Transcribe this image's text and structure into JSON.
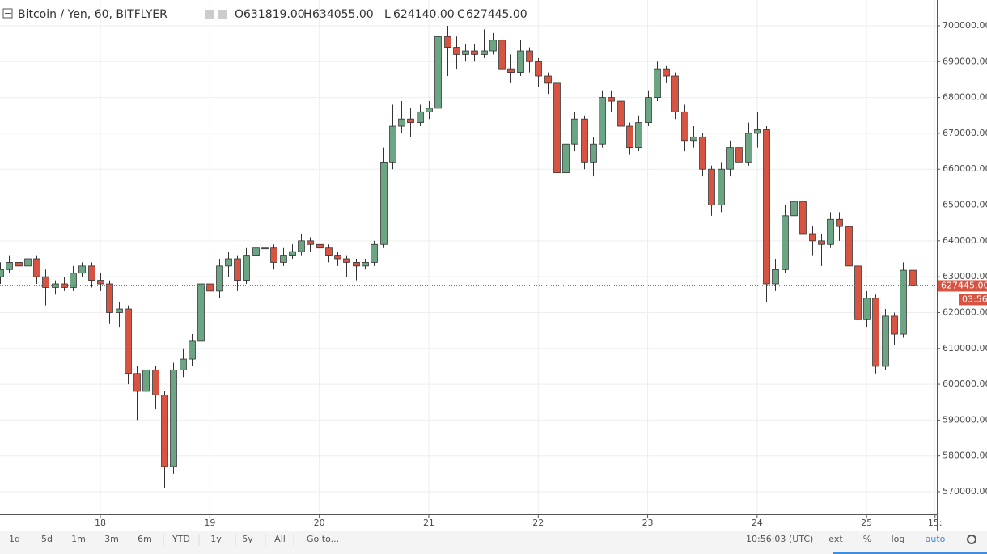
{
  "chart_data": {
    "type": "candlestick",
    "title": "Bitcoin / Yen, 60, BITFLYER",
    "x": [
      0,
      2,
      4,
      6,
      8,
      10,
      12,
      14,
      16,
      18,
      20,
      22,
      24,
      26,
      28,
      30,
      32,
      34,
      36,
      38,
      40,
      42,
      44,
      46,
      48,
      50,
      52,
      54,
      56,
      58,
      60,
      62,
      64,
      66,
      68,
      70,
      72,
      74,
      76,
      78,
      80,
      82,
      84,
      86,
      88,
      90,
      92,
      94,
      96,
      98,
      100,
      102,
      104,
      106,
      108,
      110,
      112,
      114,
      116,
      118,
      120,
      122,
      124,
      126,
      128,
      130,
      132,
      134,
      136,
      138,
      140,
      142,
      144,
      146,
      148,
      150,
      152,
      154,
      156,
      158,
      160,
      162,
      164,
      166,
      168,
      170,
      172,
      174,
      176,
      178,
      180,
      182,
      184,
      186,
      188,
      190,
      192,
      194,
      196,
      198,
      200
    ],
    "ohlc": [
      [
        630000,
        634000,
        628000,
        632000
      ],
      [
        632000,
        636000,
        631000,
        634000
      ],
      [
        634000,
        635000,
        631000,
        633000
      ],
      [
        633000,
        636000,
        632000,
        635000
      ],
      [
        635000,
        636000,
        628000,
        630000
      ],
      [
        630000,
        632000,
        622000,
        627000
      ],
      [
        627000,
        629000,
        625000,
        628000
      ],
      [
        628000,
        630000,
        626000,
        627000
      ],
      [
        627000,
        633000,
        626000,
        631000
      ],
      [
        631000,
        634000,
        630000,
        633000
      ],
      [
        633000,
        634000,
        627000,
        629000
      ],
      [
        629000,
        631000,
        626000,
        628000
      ],
      [
        628000,
        629000,
        617000,
        620000
      ],
      [
        620000,
        623000,
        616000,
        621000
      ],
      [
        621000,
        622000,
        600000,
        603000
      ],
      [
        603000,
        605000,
        590000,
        598000
      ],
      [
        598000,
        607000,
        595000,
        604000
      ],
      [
        604000,
        605000,
        593000,
        597000
      ],
      [
        597000,
        598000,
        571000,
        577000
      ],
      [
        577000,
        606000,
        575000,
        604000
      ],
      [
        604000,
        610000,
        602000,
        607000
      ],
      [
        607000,
        614000,
        605000,
        612000
      ],
      [
        612000,
        631000,
        610000,
        628000
      ],
      [
        628000,
        630000,
        622000,
        626000
      ],
      [
        626000,
        635000,
        624000,
        633000
      ],
      [
        633000,
        637000,
        630000,
        635000
      ],
      [
        635000,
        636000,
        626000,
        629000
      ],
      [
        629000,
        638000,
        628000,
        636000
      ],
      [
        636000,
        640000,
        635000,
        638000
      ],
      [
        638000,
        640000,
        634000,
        638000
      ],
      [
        638000,
        639000,
        632000,
        634000
      ],
      [
        634000,
        638000,
        633000,
        636000
      ],
      [
        636000,
        639000,
        635000,
        637000
      ],
      [
        637000,
        642000,
        636000,
        640000
      ],
      [
        640000,
        641000,
        637000,
        639000
      ],
      [
        639000,
        640000,
        636000,
        638000
      ],
      [
        638000,
        639000,
        634000,
        636000
      ],
      [
        636000,
        637000,
        633000,
        635000
      ],
      [
        635000,
        636000,
        630000,
        634000
      ],
      [
        634000,
        635000,
        629000,
        633000
      ],
      [
        633000,
        635000,
        632000,
        634000
      ],
      [
        634000,
        640000,
        633000,
        639000
      ],
      [
        639000,
        666000,
        638000,
        662000
      ],
      [
        662000,
        678000,
        660000,
        672000
      ],
      [
        672000,
        679000,
        670000,
        674000
      ],
      [
        674000,
        677000,
        669000,
        673000
      ],
      [
        673000,
        678000,
        672000,
        676000
      ],
      [
        676000,
        679000,
        674000,
        677000
      ],
      [
        677000,
        700000,
        676000,
        697000
      ],
      [
        697000,
        700000,
        686000,
        694000
      ],
      [
        694000,
        697000,
        688000,
        692000
      ],
      [
        692000,
        695000,
        690000,
        693000
      ],
      [
        693000,
        695000,
        690000,
        692000
      ],
      [
        692000,
        699000,
        691000,
        693000
      ],
      [
        693000,
        698000,
        692000,
        696000
      ],
      [
        696000,
        697000,
        680000,
        688000
      ],
      [
        688000,
        692000,
        684000,
        687000
      ],
      [
        687000,
        696000,
        686000,
        693000
      ],
      [
        693000,
        694000,
        687000,
        690000
      ],
      [
        690000,
        691000,
        683000,
        686000
      ],
      [
        686000,
        687000,
        681000,
        684000
      ],
      [
        684000,
        685000,
        657000,
        659000
      ],
      [
        659000,
        668000,
        657000,
        667000
      ],
      [
        667000,
        676000,
        665000,
        674000
      ],
      [
        674000,
        675000,
        660000,
        662000
      ],
      [
        662000,
        669000,
        658000,
        667000
      ],
      [
        667000,
        682000,
        666000,
        680000
      ],
      [
        680000,
        682000,
        676000,
        679000
      ],
      [
        679000,
        680000,
        670000,
        672000
      ],
      [
        672000,
        673000,
        664000,
        666000
      ],
      [
        666000,
        675000,
        665000,
        673000
      ],
      [
        673000,
        682000,
        672000,
        680000
      ],
      [
        680000,
        690000,
        679000,
        688000
      ],
      [
        688000,
        689000,
        684000,
        686000
      ],
      [
        686000,
        687000,
        674000,
        676000
      ],
      [
        676000,
        678000,
        665000,
        668000
      ],
      [
        668000,
        672000,
        666000,
        669000
      ],
      [
        669000,
        670000,
        658000,
        660000
      ],
      [
        660000,
        661000,
        647000,
        650000
      ],
      [
        650000,
        662000,
        648000,
        660000
      ],
      [
        660000,
        668000,
        658000,
        666000
      ],
      [
        666000,
        667000,
        659000,
        662000
      ],
      [
        662000,
        673000,
        661000,
        670000
      ],
      [
        670000,
        676000,
        666000,
        671000
      ],
      [
        671000,
        672000,
        623000,
        628000
      ],
      [
        628000,
        635000,
        626000,
        632000
      ],
      [
        632000,
        650000,
        631000,
        647000
      ],
      [
        647000,
        654000,
        645000,
        651000
      ],
      [
        651000,
        652000,
        640000,
        642000
      ],
      [
        642000,
        644000,
        636000,
        640000
      ],
      [
        640000,
        642000,
        633000,
        639000
      ],
      [
        639000,
        648000,
        638000,
        646000
      ],
      [
        646000,
        648000,
        640000,
        644000
      ],
      [
        644000,
        645000,
        630000,
        633000
      ],
      [
        633000,
        634000,
        616000,
        618000
      ],
      [
        618000,
        626000,
        616000,
        624000
      ],
      [
        624000,
        625000,
        603000,
        605000
      ],
      [
        605000,
        621000,
        604000,
        619000
      ],
      [
        619000,
        620000,
        611000,
        614000
      ],
      [
        614000,
        634000,
        613000,
        631819
      ],
      [
        631819,
        634055,
        624140,
        627445
      ]
    ],
    "up_color": "#6ba583",
    "down_color": "#d75442",
    "last_line_color": "#d75442",
    "xlim": [
      0,
      205.4
    ],
    "xticks": [
      {
        "value": 22,
        "label": "18"
      },
      {
        "value": 46,
        "label": "19"
      },
      {
        "value": 70,
        "label": "20"
      },
      {
        "value": 94,
        "label": "21"
      },
      {
        "value": 118,
        "label": "22"
      },
      {
        "value": 142,
        "label": "23"
      },
      {
        "value": 166,
        "label": "24"
      },
      {
        "value": 190,
        "label": "25"
      },
      {
        "value": 205,
        "label": "15:"
      }
    ],
    "ylim": [
      563680,
      707220
    ],
    "yticks": [
      {
        "value": 570000,
        "label": "570000.00"
      },
      {
        "value": 580000,
        "label": "580000.00"
      },
      {
        "value": 590000,
        "label": "590000.00"
      },
      {
        "value": 600000,
        "label": "600000.00"
      },
      {
        "value": 610000,
        "label": "610000.00"
      },
      {
        "value": 620000,
        "label": "620000.00"
      },
      {
        "value": 630000,
        "label": "630000.00"
      },
      {
        "value": 640000,
        "label": "640000.00"
      },
      {
        "value": 650000,
        "label": "650000.00"
      },
      {
        "value": 660000,
        "label": "660000.00"
      },
      {
        "value": 670000,
        "label": "670000.00"
      },
      {
        "value": 680000,
        "label": "680000.00"
      },
      {
        "value": 690000,
        "label": "690000.00"
      },
      {
        "value": 700000,
        "label": "700000.00"
      }
    ],
    "grid": true,
    "last_letters": [
      "O",
      "H",
      "L",
      "C"
    ],
    "last_labels": [
      "631819.00",
      "634055.00",
      "624140.00",
      "627445.00"
    ],
    "countdown": "03:56"
  },
  "toolbar": {
    "ranges": [
      "1d",
      "5d",
      "1m",
      "3m",
      "6m",
      "YTD",
      "1y",
      "5y",
      "All"
    ],
    "goto": "Go to...",
    "time": "10:56:03 (UTC)",
    "options": [
      "ext",
      "%",
      "log",
      "auto"
    ]
  }
}
